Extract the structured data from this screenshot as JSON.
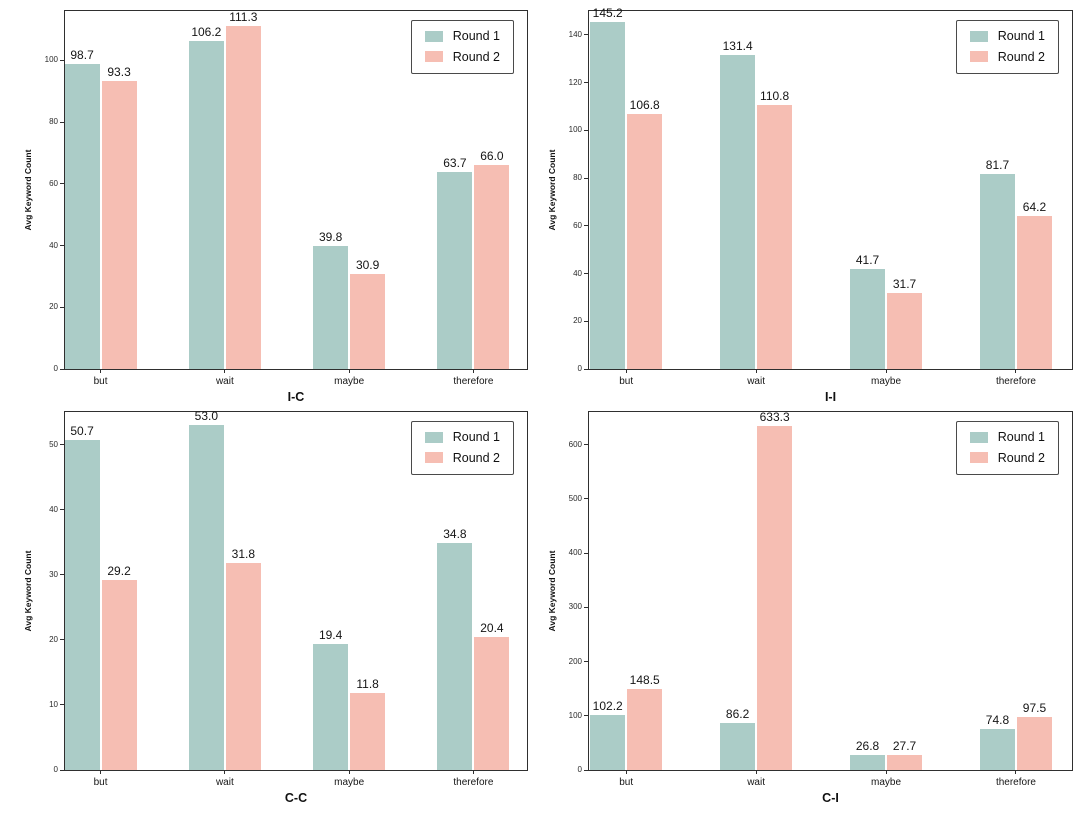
{
  "figure": {
    "background": "#ffffff",
    "series_colors": {
      "round1": "#abccc7",
      "round2": "#f6beb3"
    },
    "spine_color": "#2f2f2f",
    "legend": {
      "position": "upper right",
      "items": [
        {
          "label": "Round 1",
          "color": "#abccc7"
        },
        {
          "label": "Round 2",
          "color": "#f6beb3"
        }
      ]
    }
  },
  "chart_data": [
    {
      "type": "bar",
      "xlabel": "I-C",
      "ylabel": "Avg Keyword Count",
      "categories": [
        "but",
        "wait",
        "maybe",
        "therefore"
      ],
      "series": [
        {
          "name": "Round 1",
          "color": "#abccc7",
          "values": [
            98.7,
            106.2,
            39.8,
            63.7
          ]
        },
        {
          "name": "Round 2",
          "color": "#f6beb3",
          "values": [
            93.3,
            111.3,
            30.9,
            66.0
          ]
        }
      ],
      "yticks": [
        0,
        20,
        40,
        60,
        80,
        100
      ],
      "ylim": [
        0,
        116
      ],
      "grid": false,
      "bar_labels": true,
      "legend_position": "upper right"
    },
    {
      "type": "bar",
      "xlabel": "I-I",
      "ylabel": "Avg Keyword Count",
      "categories": [
        "but",
        "wait",
        "maybe",
        "therefore"
      ],
      "series": [
        {
          "name": "Round 1",
          "color": "#abccc7",
          "values": [
            145.2,
            131.4,
            41.7,
            81.7
          ]
        },
        {
          "name": "Round 2",
          "color": "#f6beb3",
          "values": [
            106.8,
            110.8,
            31.7,
            64.2
          ]
        }
      ],
      "yticks": [
        0,
        20,
        40,
        60,
        80,
        100,
        120,
        140
      ],
      "ylim": [
        0,
        150
      ],
      "grid": false,
      "bar_labels": true,
      "legend_position": "upper right"
    },
    {
      "type": "bar",
      "xlabel": "C-C",
      "ylabel": "Avg Keyword Count",
      "categories": [
        "but",
        "wait",
        "maybe",
        "therefore"
      ],
      "series": [
        {
          "name": "Round 1",
          "color": "#abccc7",
          "values": [
            50.7,
            53.0,
            19.4,
            34.8
          ]
        },
        {
          "name": "Round 2",
          "color": "#f6beb3",
          "values": [
            29.2,
            31.8,
            11.8,
            20.4
          ]
        }
      ],
      "yticks": [
        0,
        10,
        20,
        30,
        40,
        50
      ],
      "ylim": [
        0,
        55
      ],
      "grid": false,
      "bar_labels": true,
      "legend_position": "upper right"
    },
    {
      "type": "bar",
      "xlabel": "C-I",
      "ylabel": "Avg Keyword Count",
      "categories": [
        "but",
        "wait",
        "maybe",
        "therefore"
      ],
      "series": [
        {
          "name": "Round 1",
          "color": "#abccc7",
          "values": [
            102.2,
            86.2,
            26.8,
            74.8
          ]
        },
        {
          "name": "Round 2",
          "color": "#f6beb3",
          "values": [
            148.5,
            633.3,
            27.7,
            97.5
          ]
        }
      ],
      "yticks": [
        0,
        100,
        200,
        300,
        400,
        500,
        600
      ],
      "ylim": [
        0,
        660
      ],
      "grid": false,
      "bar_labels": true,
      "legend_position": "upper right"
    }
  ]
}
